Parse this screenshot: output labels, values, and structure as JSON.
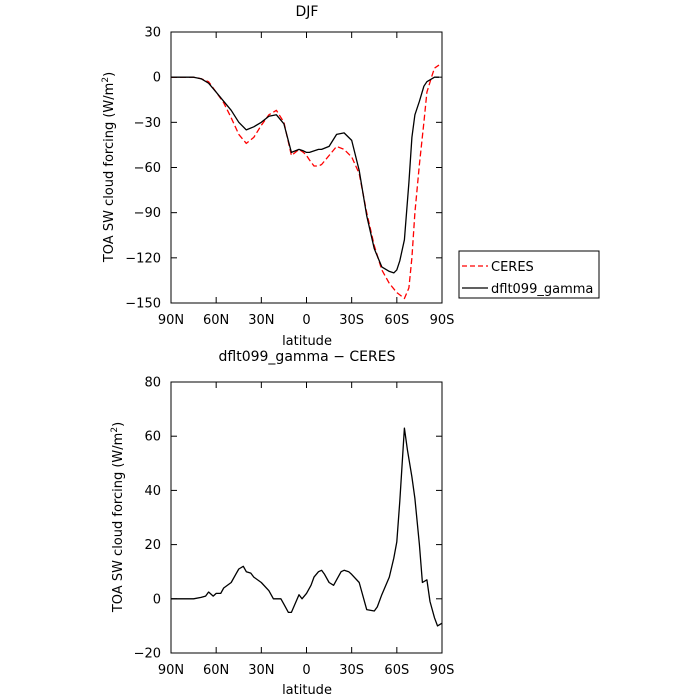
{
  "chart_data": [
    {
      "type": "line",
      "title": "DJF",
      "xlabel": "latitude",
      "ylabel": "TOA SW cloud forcing (W/m²)",
      "xlim": [
        90,
        -90
      ],
      "ylim": [
        -150,
        30
      ],
      "x_ticks": [
        90,
        60,
        30,
        0,
        -30,
        -60,
        -90
      ],
      "x_tick_labels": [
        "90N",
        "60N",
        "30N",
        "0",
        "30S",
        "60S",
        "90S"
      ],
      "y_ticks": [
        30,
        0,
        -30,
        -60,
        -90,
        -120,
        -150
      ],
      "y_tick_labels": [
        "30",
        "0",
        "−30",
        "−60",
        "−90",
        "−120",
        "−150"
      ],
      "legend_position": "outside-right",
      "series": [
        {
          "name": "CERES",
          "color": "#ff0000",
          "style": "dashed",
          "x": [
            90,
            85,
            80,
            75,
            70,
            65,
            60,
            55,
            50,
            45,
            40,
            35,
            30,
            25,
            20,
            15,
            10,
            5,
            2,
            0,
            -2,
            -5,
            -8,
            -10,
            -15,
            -20,
            -25,
            -30,
            -35,
            -40,
            -45,
            -50,
            -55,
            -60,
            -65,
            -68,
            -70,
            -72,
            -75,
            -78,
            -80,
            -83,
            -85,
            -88
          ],
          "y": [
            0,
            0,
            0,
            0,
            -1,
            -3,
            -10,
            -17,
            -27,
            -38,
            -44,
            -40,
            -32,
            -25,
            -22,
            -30,
            -52,
            -48,
            -50,
            -52,
            -55,
            -59,
            -59,
            -58,
            -52,
            -46,
            -48,
            -53,
            -64,
            -90,
            -112,
            -128,
            -137,
            -143,
            -147,
            -140,
            -120,
            -90,
            -58,
            -30,
            -10,
            0,
            6,
            8
          ]
        },
        {
          "name": "dflt099_gamma",
          "color": "#000000",
          "style": "solid",
          "x": [
            90,
            85,
            80,
            75,
            70,
            65,
            60,
            55,
            50,
            45,
            40,
            35,
            30,
            25,
            20,
            15,
            10,
            5,
            2,
            0,
            -2,
            -5,
            -8,
            -10,
            -15,
            -20,
            -25,
            -30,
            -35,
            -40,
            -45,
            -50,
            -55,
            -58,
            -60,
            -62,
            -65,
            -68,
            -70,
            -72,
            -75,
            -78,
            -80,
            -85,
            -88
          ],
          "y": [
            0,
            0,
            0,
            0,
            -1,
            -4,
            -10,
            -16,
            -22,
            -30,
            -35,
            -33,
            -30,
            -26,
            -25,
            -31,
            -50,
            -48,
            -49,
            -50,
            -50,
            -49,
            -48,
            -48,
            -46,
            -38,
            -37,
            -42,
            -62,
            -92,
            -114,
            -126,
            -129,
            -130,
            -128,
            -122,
            -108,
            -70,
            -40,
            -25,
            -16,
            -6,
            -3,
            0,
            0
          ]
        }
      ]
    },
    {
      "type": "line",
      "title": "dflt099_gamma − CERES",
      "xlabel": "latitude",
      "ylabel": "TOA SW cloud forcing (W/m²)",
      "xlim": [
        90,
        -90
      ],
      "ylim": [
        -20,
        80
      ],
      "x_ticks": [
        90,
        60,
        30,
        0,
        -30,
        -60,
        -90
      ],
      "x_tick_labels": [
        "90N",
        "60N",
        "30N",
        "0",
        "30S",
        "60S",
        "90S"
      ],
      "y_ticks": [
        80,
        60,
        40,
        20,
        0,
        -20
      ],
      "y_tick_labels": [
        "80",
        "60",
        "40",
        "20",
        "0",
        "−20"
      ],
      "series": [
        {
          "color": "#000000",
          "style": "solid",
          "x": [
            90,
            85,
            80,
            75,
            70,
            67,
            65,
            62,
            60,
            57,
            55,
            50,
            47,
            45,
            42,
            40,
            37,
            35,
            30,
            25,
            22,
            20,
            17,
            15,
            12,
            10,
            5,
            3,
            0,
            -3,
            -5,
            -8,
            -10,
            -12,
            -15,
            -18,
            -20,
            -23,
            -25,
            -28,
            -30,
            -35,
            -40,
            -45,
            -47,
            -50,
            -55,
            -58,
            -60,
            -62,
            -65,
            -67,
            -70,
            -72,
            -75,
            -77,
            -80,
            -82,
            -85,
            -87,
            -90
          ],
          "y": [
            0,
            0,
            0,
            0,
            0.5,
            1,
            2.5,
            1,
            2,
            2,
            4,
            6,
            9,
            11,
            12,
            10,
            9.5,
            8,
            6,
            3,
            0,
            0,
            0,
            -2,
            -5,
            -5,
            1.5,
            0,
            2,
            5,
            8,
            10,
            10.5,
            9,
            6,
            5,
            7,
            10,
            10.5,
            10,
            9,
            6,
            -4,
            -4.5,
            -3,
            1.5,
            8,
            15,
            21,
            36,
            63,
            55,
            45,
            37,
            20,
            6,
            7,
            -1,
            -7,
            -10,
            -9
          ]
        }
      ]
    }
  ]
}
